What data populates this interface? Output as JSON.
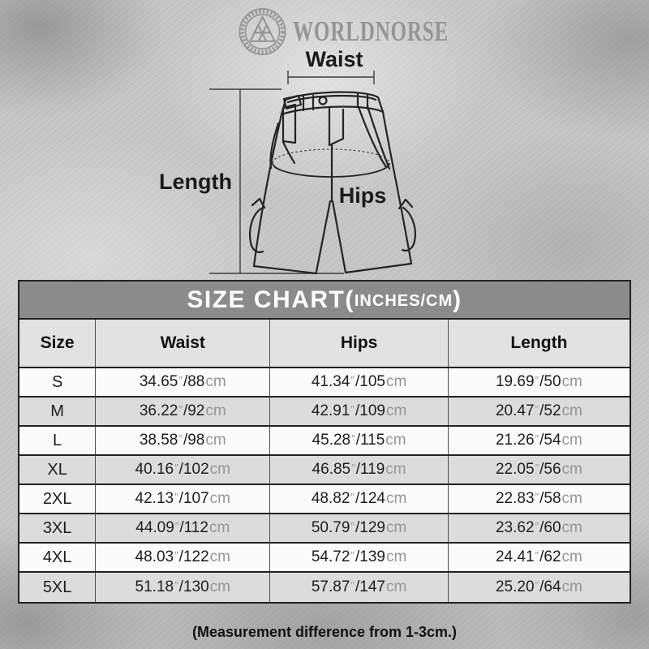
{
  "brand": {
    "name": "WORLDNORSE",
    "logo": "valknut-icon"
  },
  "diagram": {
    "waist_label": "Waist",
    "length_label": "Length",
    "hips_label": "Hips"
  },
  "size_chart": {
    "title_main": "SIZE CHART(",
    "title_unit": "INCHES/CM",
    "title_close": ")",
    "inch_mark": "″",
    "separator": "/",
    "cm_unit": "cm",
    "columns": [
      "Size",
      "Waist",
      "Hips",
      "Length"
    ],
    "rows": [
      {
        "size": "S",
        "waist": {
          "in": "34.65",
          "cm": "88"
        },
        "hips": {
          "in": "41.34",
          "cm": "105"
        },
        "length": {
          "in": "19.69",
          "cm": "50"
        }
      },
      {
        "size": "M",
        "waist": {
          "in": "36.22",
          "cm": "92"
        },
        "hips": {
          "in": "42.91",
          "cm": "109"
        },
        "length": {
          "in": "20.47",
          "cm": "52"
        }
      },
      {
        "size": "L",
        "waist": {
          "in": "38.58",
          "cm": "98"
        },
        "hips": {
          "in": "45.28",
          "cm": "115"
        },
        "length": {
          "in": "21.26",
          "cm": "54"
        }
      },
      {
        "size": "XL",
        "waist": {
          "in": "40.16",
          "cm": "102"
        },
        "hips": {
          "in": "46.85",
          "cm": "119"
        },
        "length": {
          "in": "22.05",
          "cm": "56"
        }
      },
      {
        "size": "2XL",
        "waist": {
          "in": "42.13",
          "cm": "107"
        },
        "hips": {
          "in": "48.82",
          "cm": "124"
        },
        "length": {
          "in": "22.83",
          "cm": "58"
        }
      },
      {
        "size": "3XL",
        "waist": {
          "in": "44.09",
          "cm": "112"
        },
        "hips": {
          "in": "50.79",
          "cm": "129"
        },
        "length": {
          "in": "23.62",
          "cm": "60"
        }
      },
      {
        "size": "4XL",
        "waist": {
          "in": "48.03",
          "cm": "122"
        },
        "hips": {
          "in": "54.72",
          "cm": "139"
        },
        "length": {
          "in": "24.41",
          "cm": "62"
        }
      },
      {
        "size": "5XL",
        "waist": {
          "in": "51.18",
          "cm": "130"
        },
        "hips": {
          "in": "57.87",
          "cm": "147"
        },
        "length": {
          "in": "25.20",
          "cm": "64"
        }
      }
    ]
  },
  "footnote": "(Measurement difference from 1-3cm.)",
  "colors": {
    "title_bar_bg": "#8b8b8b",
    "title_text": "#ffffff",
    "header_row_bg": "#e2e2e2",
    "row_bg": "#fbfbfb",
    "row_alt_bg": "#dcdcdc",
    "border_dark": "#222222",
    "divider": "#4f4f4f",
    "unit_text": "#969696",
    "ink": "#1d1d1d",
    "brand_gray": "#959595"
  }
}
